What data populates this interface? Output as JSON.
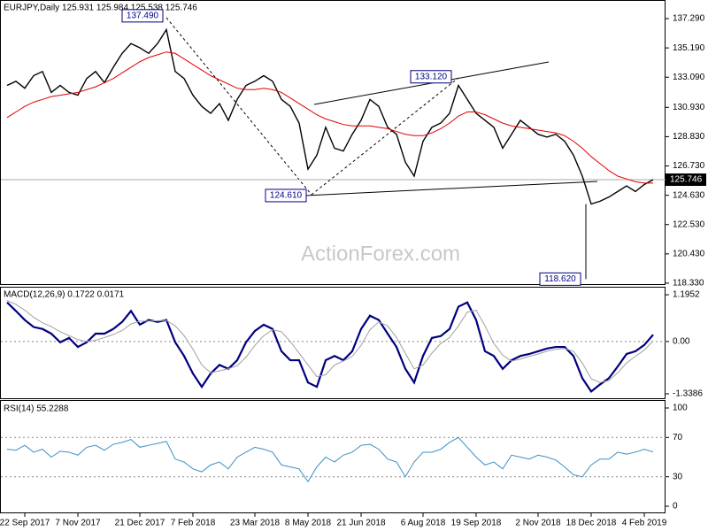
{
  "chart_data": [
    {
      "type": "line",
      "title": "EURJPY,Daily  125.931 125.984 125.538 125.746",
      "watermark": "ActionForex.com",
      "categories": [
        null,
        null,
        "22 Sep 2017",
        null,
        null,
        null,
        null,
        null,
        "7 Nov 2017",
        null,
        null,
        null,
        null,
        null,
        null,
        "21 Dec 2017",
        null,
        null,
        null,
        null,
        null,
        "7 Feb 2018",
        null,
        null,
        null,
        null,
        null,
        null,
        "23 Mar 2018",
        null,
        null,
        null,
        null,
        null,
        "8 May 2018",
        null,
        null,
        null,
        null,
        null,
        "21 Jun 2018",
        null,
        null,
        null,
        null,
        null,
        null,
        "6 Aug 2018",
        null,
        null,
        null,
        null,
        null,
        "19 Sep 2018",
        null,
        null,
        null,
        null,
        null,
        null,
        "2 Nov 2018",
        null,
        null,
        null,
        null,
        null,
        "18 Dec 2018",
        null,
        null,
        null,
        null,
        null,
        "4 Feb 2019",
        null
      ],
      "series": [
        {
          "color": "#000000",
          "values": [
            132.5,
            132.8,
            132.3,
            133.2,
            133.5,
            132.0,
            132.5,
            132.0,
            131.8,
            133.0,
            133.5,
            132.7,
            133.8,
            134.8,
            135.5,
            135.2,
            134.8,
            135.5,
            136.5,
            133.5,
            133.0,
            131.8,
            131.0,
            130.5,
            131.2,
            130.0,
            131.5,
            132.5,
            132.8,
            133.2,
            132.8,
            131.5,
            131.0,
            129.8,
            126.5,
            127.5,
            129.5,
            128.0,
            127.8,
            129.0,
            130.0,
            131.5,
            131.0,
            129.5,
            129.0,
            127.0,
            126.0,
            128.5,
            129.5,
            129.8,
            130.5,
            132.5,
            131.5,
            130.5,
            130.0,
            129.5,
            128.0,
            129.0,
            130.0,
            129.5,
            129.0,
            128.8,
            129.0,
            128.5,
            127.5,
            126.0,
            124.0,
            124.2,
            124.5,
            124.9,
            125.3,
            124.9,
            125.4,
            125.746
          ]
        },
        {
          "color": "#e00000",
          "values": [
            130.2,
            130.6,
            131.0,
            131.3,
            131.5,
            131.7,
            131.8,
            131.9,
            132.0,
            132.2,
            132.4,
            132.7,
            133.0,
            133.4,
            133.8,
            134.2,
            134.5,
            134.7,
            134.9,
            134.8,
            134.4,
            134.0,
            133.6,
            133.2,
            132.9,
            132.6,
            132.3,
            132.2,
            132.2,
            132.3,
            132.2,
            132.0,
            131.6,
            131.2,
            130.8,
            130.4,
            130.1,
            129.9,
            129.7,
            129.6,
            129.6,
            129.6,
            129.5,
            129.4,
            129.2,
            129.0,
            128.9,
            128.9,
            129.1,
            129.4,
            129.8,
            130.3,
            130.6,
            130.6,
            130.4,
            130.1,
            129.8,
            129.6,
            129.5,
            129.4,
            129.3,
            129.2,
            129.1,
            128.9,
            128.5,
            128.0,
            127.4,
            126.9,
            126.4,
            126.0,
            125.8,
            125.6,
            125.5,
            125.5
          ]
        }
      ],
      "annotations": [
        {
          "value": 137.49,
          "label": "137.490"
        },
        {
          "value": 133.12,
          "label": "133.120"
        },
        {
          "value": 124.61,
          "label": "124.610"
        },
        {
          "value": 118.62,
          "label": "118.620"
        }
      ],
      "ylim": [
        118.2,
        138.56
      ],
      "yticks": [
        {
          "value": 137.29,
          "label": "137.290"
        },
        {
          "value": 135.19,
          "label": "135.190"
        },
        {
          "value": 133.09,
          "label": "133.090"
        },
        {
          "value": 130.93,
          "label": "130.930"
        },
        {
          "value": 128.83,
          "label": "128.830"
        },
        {
          "value": 126.73,
          "label": "126.730"
        },
        {
          "value": 124.63,
          "label": "124.630"
        },
        {
          "value": 122.53,
          "label": "122.530"
        },
        {
          "value": 120.43,
          "label": "120.430"
        },
        {
          "value": 118.33,
          "label": "118.330"
        }
      ]
    },
    {
      "type": "line",
      "title": "MACD(12,26,9) 0.1722 0.0171",
      "series": [
        {
          "color": "#000080",
          "values": [
            1.0,
            0.78,
            0.55,
            0.37,
            0.32,
            0.2,
            -0.02,
            0.09,
            -0.14,
            -0.02,
            0.2,
            0.2,
            0.32,
            0.5,
            0.78,
            0.43,
            0.55,
            0.5,
            0.55,
            -0.02,
            -0.37,
            -0.82,
            -1.16,
            -0.82,
            -0.6,
            -0.7,
            -0.48,
            -0.02,
            0.27,
            0.43,
            0.32,
            -0.25,
            -0.48,
            -0.48,
            -1.05,
            -1.16,
            -0.48,
            -0.37,
            -0.48,
            -0.25,
            0.32,
            0.66,
            0.55,
            0.2,
            -0.14,
            -0.7,
            -1.05,
            -0.37,
            0.09,
            0.14,
            0.32,
            0.89,
            1.0,
            0.55,
            -0.25,
            -0.37,
            -0.7,
            -0.48,
            -0.37,
            -0.32,
            -0.25,
            -0.18,
            -0.14,
            -0.14,
            -0.37,
            -0.94,
            -1.28,
            -1.1,
            -0.94,
            -0.64,
            -0.32,
            -0.25,
            -0.09,
            0.1722
          ]
        },
        {
          "color": "#a0a0a0",
          "values": [
            1.05,
            0.95,
            0.8,
            0.62,
            0.48,
            0.38,
            0.25,
            0.15,
            0.05,
            0.0,
            0.03,
            0.1,
            0.18,
            0.28,
            0.45,
            0.52,
            0.52,
            0.53,
            0.54,
            0.4,
            0.15,
            -0.2,
            -0.6,
            -0.8,
            -0.75,
            -0.7,
            -0.62,
            -0.4,
            -0.1,
            0.15,
            0.3,
            0.25,
            0.0,
            -0.3,
            -0.6,
            -0.9,
            -0.85,
            -0.6,
            -0.5,
            -0.38,
            -0.1,
            0.3,
            0.5,
            0.4,
            0.1,
            -0.3,
            -0.7,
            -0.6,
            -0.3,
            -0.05,
            0.1,
            0.4,
            0.75,
            0.8,
            0.4,
            -0.05,
            -0.35,
            -0.5,
            -0.45,
            -0.38,
            -0.32,
            -0.25,
            -0.2,
            -0.18,
            -0.25,
            -0.55,
            -0.95,
            -1.05,
            -1.0,
            -0.8,
            -0.55,
            -0.38,
            -0.22,
            0.0171
          ]
        }
      ],
      "ylim": [
        -1.475,
        1.378
      ],
      "yticks": [
        1.1952,
        {
          "value": 0,
          "label": "0.00"
        },
        -1.3386
      ]
    },
    {
      "type": "line",
      "title": "RSI(14) 55.2288",
      "series": [
        {
          "color": "#3b8fc4",
          "values": [
            58,
            57,
            62,
            55,
            58,
            50,
            56,
            55,
            52,
            60,
            62,
            57,
            63,
            65,
            68,
            60,
            62,
            64,
            66,
            48,
            45,
            38,
            35,
            42,
            45,
            38,
            50,
            55,
            60,
            58,
            55,
            42,
            40,
            38,
            25,
            40,
            50,
            45,
            52,
            55,
            62,
            63,
            58,
            48,
            45,
            30,
            45,
            55,
            55,
            58,
            65,
            70,
            60,
            50,
            42,
            45,
            38,
            52,
            50,
            48,
            52,
            50,
            47,
            40,
            32,
            30,
            42,
            48,
            48,
            55,
            53,
            55,
            58,
            55.2288
          ]
        }
      ],
      "ylim": [
        -7.2,
        107.2
      ],
      "yticks": [
        100,
        70,
        30,
        0
      ]
    }
  ]
}
